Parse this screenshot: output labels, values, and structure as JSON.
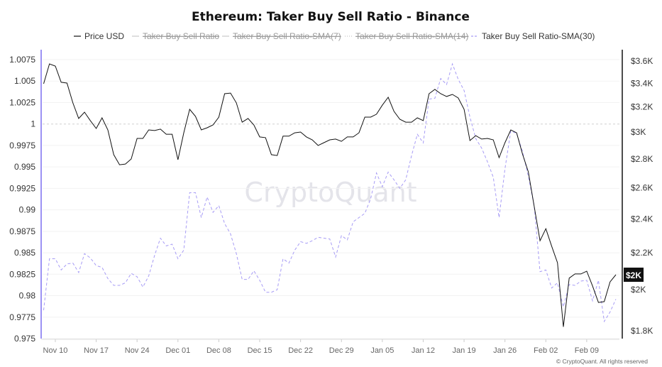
{
  "chart_data": {
    "type": "line",
    "title": "Ethereum: Taker Buy Sell Ratio - Binance",
    "legend": [
      {
        "name": "Price USD",
        "visible": true,
        "color": "#111111",
        "style": "solid"
      },
      {
        "name": "Taker Buy Sell Ratio",
        "visible": false,
        "color": "#333333",
        "style": "solid"
      },
      {
        "name": "Taker Buy Sell Ratio-SMA(7)",
        "visible": false,
        "color": "#bbbbbb",
        "style": "solid"
      },
      {
        "name": "Taker Buy Sell Ratio-SMA(14)",
        "visible": false,
        "color": "#bbbbbb",
        "style": "dotted"
      },
      {
        "name": "Taker Buy Sell Ratio-SMA(30)",
        "visible": true,
        "color": "#a79cf5",
        "style": "dashed"
      }
    ],
    "legend_placement": "top-center",
    "grid": true,
    "left_axis": {
      "scale": "linear",
      "range": [
        0.975,
        1.0075
      ],
      "ticks": [
        1.0075,
        1.005,
        1.0025,
        1,
        0.9975,
        0.995,
        0.9925,
        0.99,
        0.9875,
        0.985,
        0.9825,
        0.98,
        0.9775,
        0.975
      ],
      "tick_labels": [
        "1.0075",
        "1.005",
        "1.0025",
        "1",
        "0.9975",
        "0.995",
        "0.9925",
        "0.99",
        "0.9875",
        "0.985",
        "0.9825",
        "0.98",
        "0.9775",
        "0.975"
      ],
      "reference_line": 1,
      "axis_color": "#7b6ff0"
    },
    "right_axis": {
      "scale": "log",
      "range": [
        1800,
        3600
      ],
      "ticks": [
        3600,
        3400,
        3200,
        3000,
        2800,
        2600,
        2400,
        2200,
        2000,
        1800
      ],
      "tick_labels": [
        "$3.6K",
        "$3.4K",
        "$3.2K",
        "$3K",
        "$2.8K",
        "$2.6K",
        "$2.4K",
        "$2.2K",
        "$2K",
        "$1.8K"
      ],
      "last_value_label": "$2K",
      "last_value": 2079,
      "axis_color": "#111111"
    },
    "x_ticks": [
      "2024-11-10",
      "2024-11-17",
      "2024-11-24",
      "2024-12-01",
      "2024-12-08",
      "2024-12-15",
      "2024-12-22",
      "2024-12-29",
      "2025-01-05",
      "2025-01-12",
      "2025-01-19",
      "2025-01-26",
      "2025-02-02",
      "2025-02-09"
    ],
    "x_tick_labels": [
      "Nov 10",
      "Nov 17",
      "Nov 24",
      "Dec 01",
      "Dec 08",
      "Dec 15",
      "Dec 22",
      "Dec 29",
      "Jan 05",
      "Jan 12",
      "Jan 19",
      "Jan 26",
      "Feb 02",
      "Feb 09"
    ],
    "x": [
      "2024-11-08",
      "2024-11-09",
      "2024-11-10",
      "2024-11-11",
      "2024-11-12",
      "2024-11-13",
      "2024-11-14",
      "2024-11-15",
      "2024-11-16",
      "2024-11-17",
      "2024-11-18",
      "2024-11-19",
      "2024-11-20",
      "2024-11-21",
      "2024-11-22",
      "2024-11-23",
      "2024-11-24",
      "2024-11-25",
      "2024-11-26",
      "2024-11-27",
      "2024-11-28",
      "2024-11-29",
      "2024-11-30",
      "2024-12-01",
      "2024-12-02",
      "2024-12-03",
      "2024-12-04",
      "2024-12-05",
      "2024-12-06",
      "2024-12-07",
      "2024-12-08",
      "2024-12-09",
      "2024-12-10",
      "2024-12-11",
      "2024-12-12",
      "2024-12-13",
      "2024-12-14",
      "2024-12-15",
      "2024-12-16",
      "2024-12-17",
      "2024-12-18",
      "2024-12-19",
      "2024-12-20",
      "2024-12-21",
      "2024-12-22",
      "2024-12-23",
      "2024-12-24",
      "2024-12-25",
      "2024-12-26",
      "2024-12-27",
      "2024-12-28",
      "2024-12-29",
      "2024-12-30",
      "2024-12-31",
      "2025-01-01",
      "2025-01-02",
      "2025-01-03",
      "2025-01-04",
      "2025-01-05",
      "2025-01-06",
      "2025-01-07",
      "2025-01-08",
      "2025-01-09",
      "2025-01-10",
      "2025-01-11",
      "2025-01-12",
      "2025-01-13",
      "2025-01-14",
      "2025-01-15",
      "2025-01-16",
      "2025-01-17",
      "2025-01-18",
      "2025-01-19",
      "2025-01-20",
      "2025-01-21",
      "2025-01-22",
      "2025-01-23",
      "2025-01-24",
      "2025-01-25",
      "2025-01-26",
      "2025-01-27",
      "2025-01-28",
      "2025-01-29",
      "2025-01-30",
      "2025-01-31",
      "2025-02-01",
      "2025-02-02",
      "2025-02-03",
      "2025-02-04",
      "2025-02-05",
      "2025-02-06",
      "2025-02-07",
      "2025-02-08",
      "2025-02-09",
      "2025-02-10",
      "2025-02-11",
      "2025-02-12",
      "2025-02-13",
      "2025-02-14"
    ],
    "series": [
      {
        "name": "Price USD",
        "axis": "right",
        "values": [
          3396,
          3574,
          3554,
          3409,
          3402,
          3233,
          3106,
          3157,
          3089,
          3027,
          3111,
          3016,
          2830,
          2758,
          2763,
          2799,
          2951,
          2951,
          3016,
          3011,
          3022,
          2983,
          2983,
          2794,
          2994,
          3180,
          3123,
          3016,
          3033,
          3055,
          3117,
          3310,
          3316,
          3233,
          3077,
          3106,
          3055,
          2962,
          2957,
          2830,
          2824,
          2968,
          2968,
          2994,
          3000,
          2962,
          2940,
          2898,
          2919,
          2940,
          2946,
          2929,
          2962,
          2962,
          2994,
          3117,
          3117,
          3140,
          3214,
          3280,
          3163,
          3100,
          3077,
          3077,
          3111,
          3089,
          3310,
          3347,
          3310,
          3287,
          3304,
          3274,
          3180,
          2935,
          2972,
          2946,
          2951,
          2940,
          2809,
          2919,
          3016,
          2994,
          2835,
          2708,
          2480,
          2269,
          2340,
          2237,
          2144,
          1818,
          2061,
          2083,
          2083,
          2098,
          2020,
          1936,
          1940,
          2041,
          2079
        ]
      },
      {
        "name": "Taker Buy Sell Ratio-SMA(30)",
        "axis": "left",
        "values": [
          0.9783,
          0.9843,
          0.9843,
          0.983,
          0.9837,
          0.9838,
          0.9827,
          0.9849,
          0.9844,
          0.9835,
          0.9833,
          0.982,
          0.9812,
          0.9812,
          0.9815,
          0.9826,
          0.9822,
          0.981,
          0.9823,
          0.9847,
          0.9867,
          0.9858,
          0.986,
          0.9843,
          0.9853,
          0.992,
          0.992,
          0.9891,
          0.9915,
          0.9897,
          0.9905,
          0.9884,
          0.9872,
          0.9849,
          0.9819,
          0.9819,
          0.9829,
          0.9818,
          0.9804,
          0.9804,
          0.9807,
          0.9843,
          0.9838,
          0.9853,
          0.9863,
          0.9861,
          0.9864,
          0.9868,
          0.9867,
          0.9866,
          0.9845,
          0.987,
          0.9865,
          0.9886,
          0.9891,
          0.9896,
          0.9913,
          0.9943,
          0.9927,
          0.9944,
          0.9935,
          0.9925,
          0.9935,
          0.9963,
          0.9988,
          0.9978,
          1.0029,
          1.003,
          1.0053,
          1.0046,
          1.007,
          1.0052,
          1.0039,
          1.0008,
          0.9983,
          0.9972,
          0.9956,
          0.9938,
          0.9891,
          0.9948,
          0.9992,
          0.9989,
          0.9968,
          0.9939,
          0.9905,
          0.9828,
          0.983,
          0.9809,
          0.9815,
          0.9787,
          0.9813,
          0.9812,
          0.9817,
          0.9818,
          0.9794,
          0.9818,
          0.977,
          0.9781,
          0.9796
        ]
      }
    ],
    "watermark": "CryptoQuant",
    "copyright": "© CryptoQuant. All rights reserved"
  }
}
